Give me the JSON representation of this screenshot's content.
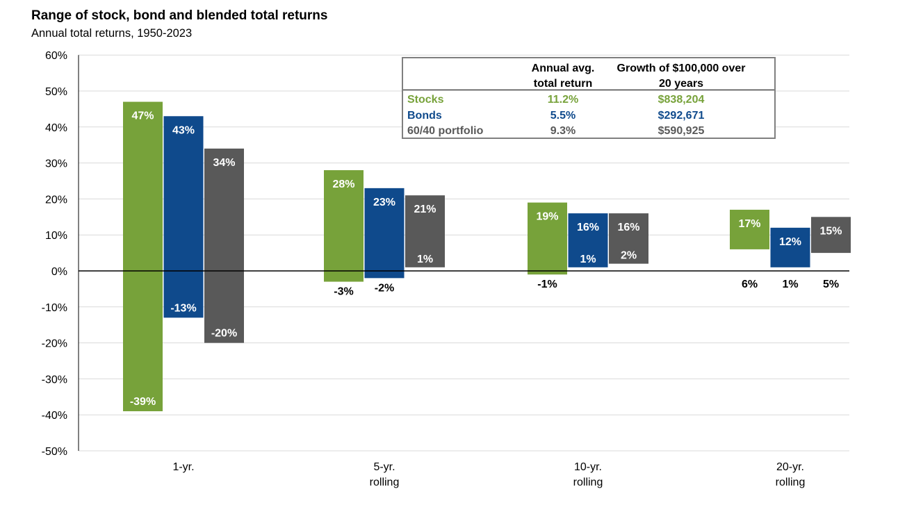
{
  "header": {
    "title": "Range of stock, bond and blended total returns",
    "subtitle": "Annual total returns, 1950-2023"
  },
  "summary_table": {
    "headers": [
      "",
      "Annual avg.\ntotal return",
      "Growth of $100,000 over\n20 years"
    ],
    "rows": [
      {
        "label": "Stocks",
        "avg": "11.2%",
        "growth": "$838,204",
        "color": "#77a23a"
      },
      {
        "label": "Bonds",
        "avg": "5.5%",
        "growth": "$292,671",
        "color": "#0f4a8c"
      },
      {
        "label": "60/40 portfolio",
        "avg": "9.3%",
        "growth": "$590,925",
        "color": "#595959"
      }
    ]
  },
  "chart_data": {
    "type": "bar",
    "subtype": "floating range",
    "title": "Range of stock, bond and blended total returns",
    "subtitle": "Annual total returns, 1950-2023",
    "categories": [
      "1-yr.",
      "5-yr.\nrolling",
      "10-yr.\nrolling",
      "20-yr.\nrolling"
    ],
    "series": [
      {
        "color": "#77a23a",
        "max": [
          47,
          28,
          19,
          17
        ],
        "min": [
          -39,
          -3,
          -1,
          6
        ]
      },
      {
        "color": "#0f4a8c",
        "max": [
          43,
          23,
          16,
          12
        ],
        "min": [
          -13,
          -2,
          1,
          1
        ]
      },
      {
        "color": "#595959",
        "max": [
          34,
          21,
          16,
          15
        ],
        "min": [
          -20,
          1,
          2,
          5
        ]
      }
    ],
    "ylim": [
      -50,
      60
    ],
    "yticks": [
      60,
      50,
      40,
      30,
      20,
      10,
      0,
      -10,
      -20,
      -30,
      -40,
      -50
    ],
    "ytick_format": "%",
    "grid": true,
    "zero_line": true
  }
}
